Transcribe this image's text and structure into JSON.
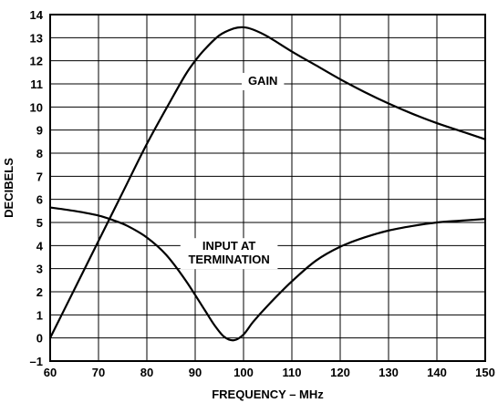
{
  "chart_data": {
    "type": "line",
    "xlabel": "FREQUENCY – MHz",
    "ylabel": "DECIBELS",
    "xlim": [
      60,
      150
    ],
    "ylim": [
      -1,
      14
    ],
    "x_ticks": [
      60,
      70,
      80,
      90,
      100,
      110,
      120,
      130,
      140,
      150
    ],
    "y_ticks": [
      -1,
      0,
      1,
      2,
      3,
      4,
      5,
      6,
      7,
      8,
      9,
      10,
      11,
      12,
      13,
      14
    ],
    "x_tick_labels": [
      "60",
      "70",
      "80",
      "90",
      "100",
      "110",
      "120",
      "130",
      "140",
      "150"
    ],
    "y_tick_labels": [
      "–1",
      "0",
      "1",
      "2",
      "3",
      "4",
      "5",
      "6",
      "7",
      "8",
      "9",
      "10",
      "11",
      "12",
      "13",
      "14"
    ],
    "grid": true,
    "series": [
      {
        "name": "GAIN",
        "label_lines": [
          "GAIN"
        ],
        "x": [
          60,
          65,
          70,
          75,
          80,
          85,
          88,
          90,
          92,
          95,
          98,
          100,
          102,
          105,
          110,
          115,
          120,
          125,
          130,
          135,
          140,
          145,
          150
        ],
        "y": [
          0,
          2.1,
          4.2,
          6.3,
          8.4,
          10.3,
          11.4,
          12.0,
          12.5,
          13.1,
          13.4,
          13.45,
          13.35,
          13.05,
          12.4,
          11.8,
          11.2,
          10.65,
          10.15,
          9.7,
          9.3,
          8.95,
          8.6
        ]
      },
      {
        "name": "INPUT AT TERMINATION",
        "label_lines": [
          "INPUT AT",
          "TERMINATION"
        ],
        "x": [
          60,
          65,
          70,
          73,
          76,
          80,
          84,
          88,
          92,
          94,
          96,
          98,
          100,
          102,
          105,
          110,
          115,
          120,
          125,
          130,
          135,
          140,
          145,
          150
        ],
        "y": [
          5.65,
          5.5,
          5.3,
          5.1,
          4.85,
          4.35,
          3.6,
          2.5,
          1.2,
          0.55,
          0.05,
          -0.1,
          0.15,
          0.7,
          1.4,
          2.45,
          3.35,
          3.95,
          4.35,
          4.65,
          4.85,
          5.0,
          5.08,
          5.15
        ]
      }
    ]
  }
}
